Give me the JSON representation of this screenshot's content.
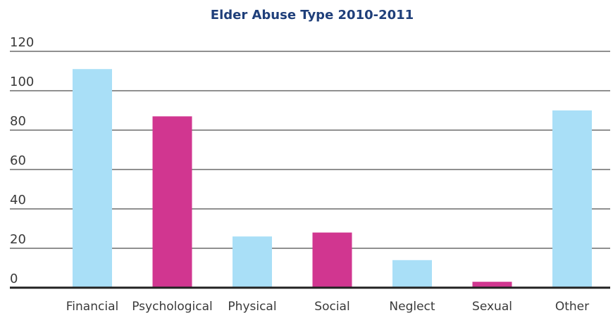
{
  "chart_data": {
    "type": "bar",
    "title": "Elder Abuse Type 2010-2011",
    "categories": [
      "Financial",
      "Psychological",
      "Physical",
      "Social",
      "Neglect",
      "Sexual",
      "Other"
    ],
    "values": [
      111,
      87,
      26,
      28,
      14,
      3,
      90
    ],
    "ylim": [
      0,
      120
    ],
    "yticks": [
      0,
      20,
      40,
      60,
      80,
      100,
      120
    ],
    "grid": true,
    "legend": "none",
    "bar_colors": [
      "#a9dff7",
      "#d13690",
      "#a9dff7",
      "#d13690",
      "#a9dff7",
      "#d13690",
      "#a9dff7"
    ]
  }
}
